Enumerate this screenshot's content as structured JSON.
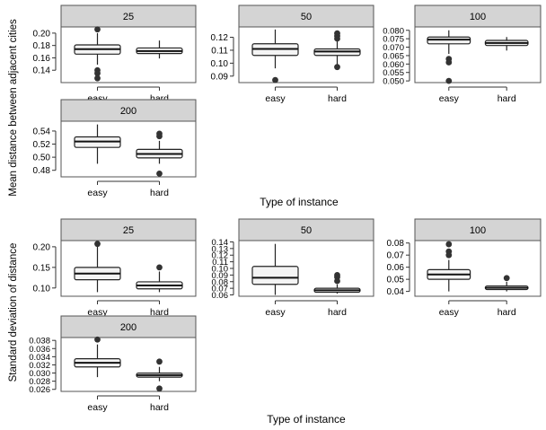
{
  "figure": {
    "top": {
      "ylabel": "Mean distance between adjacent cities",
      "xlabel": "Type of instance"
    },
    "bottom": {
      "ylabel": "Standard deviation of distance",
      "xlabel": "Type of instance"
    }
  },
  "chart_data": [
    {
      "type": "box",
      "facet": "25",
      "group": "Mean distance between adjacent cities",
      "categories": [
        "easy",
        "hard"
      ],
      "yticks": [
        0.14,
        0.16,
        0.18,
        0.2
      ],
      "ylim": [
        0.12,
        0.21
      ],
      "boxes": [
        {
          "name": "easy",
          "whisker_low": 0.149,
          "q1": 0.166,
          "median": 0.174,
          "q3": 0.181,
          "whisker_high": 0.2,
          "outliers": [
            0.206,
            0.14,
            0.135,
            0.127
          ]
        },
        {
          "name": "hard",
          "whisker_low": 0.159,
          "q1": 0.167,
          "median": 0.171,
          "q3": 0.176,
          "whisker_high": 0.188,
          "outliers": []
        }
      ]
    },
    {
      "type": "box",
      "facet": "50",
      "group": "Mean distance between adjacent cities",
      "categories": [
        "easy",
        "hard"
      ],
      "yticks": [
        0.09,
        0.1,
        0.11,
        0.12
      ],
      "ylim": [
        0.085,
        0.128
      ],
      "boxes": [
        {
          "name": "easy",
          "whisker_low": 0.096,
          "q1": 0.106,
          "median": 0.111,
          "q3": 0.115,
          "whisker_high": 0.126,
          "outliers": [
            0.087
          ]
        },
        {
          "name": "hard",
          "whisker_low": 0.099,
          "q1": 0.106,
          "median": 0.109,
          "q3": 0.111,
          "whisker_high": 0.118,
          "outliers": [
            0.123,
            0.121,
            0.119,
            0.097
          ]
        }
      ]
    },
    {
      "type": "box",
      "facet": "100",
      "group": "Mean distance between adjacent cities",
      "categories": [
        "easy",
        "hard"
      ],
      "yticks": [
        0.05,
        0.055,
        0.06,
        0.065,
        0.07,
        0.075,
        0.08
      ],
      "ylim": [
        0.049,
        0.082
      ],
      "boxes": [
        {
          "name": "easy",
          "whisker_low": 0.066,
          "q1": 0.072,
          "median": 0.0745,
          "q3": 0.076,
          "whisker_high": 0.08,
          "outliers": [
            0.063,
            0.061,
            0.05
          ]
        },
        {
          "name": "hard",
          "whisker_low": 0.068,
          "q1": 0.071,
          "median": 0.0725,
          "q3": 0.074,
          "whisker_high": 0.076,
          "outliers": []
        }
      ]
    },
    {
      "type": "box",
      "facet": "200",
      "group": "Mean distance between adjacent cities",
      "categories": [
        "easy",
        "hard"
      ],
      "yticks": [
        0.48,
        0.5,
        0.52,
        0.54
      ],
      "ylim": [
        0.47,
        0.555
      ],
      "boxes": [
        {
          "name": "easy",
          "whisker_low": 0.49,
          "q1": 0.515,
          "median": 0.524,
          "q3": 0.531,
          "whisker_high": 0.55,
          "outliers": []
        },
        {
          "name": "hard",
          "whisker_low": 0.49,
          "q1": 0.499,
          "median": 0.505,
          "q3": 0.512,
          "whisker_high": 0.525,
          "outliers": [
            0.536,
            0.532,
            0.475
          ]
        }
      ]
    },
    {
      "type": "box",
      "facet": "25",
      "group": "Standard deviation of distance",
      "categories": [
        "easy",
        "hard"
      ],
      "yticks": [
        0.1,
        0.15,
        0.2
      ],
      "ylim": [
        0.08,
        0.215
      ],
      "boxes": [
        {
          "name": "easy",
          "whisker_low": 0.09,
          "q1": 0.12,
          "median": 0.135,
          "q3": 0.15,
          "whisker_high": 0.2,
          "outliers": [
            0.207
          ]
        },
        {
          "name": "hard",
          "whisker_low": 0.09,
          "q1": 0.098,
          "median": 0.106,
          "q3": 0.115,
          "whisker_high": 0.14,
          "outliers": [
            0.15
          ]
        }
      ]
    },
    {
      "type": "box",
      "facet": "50",
      "group": "Standard deviation of distance",
      "categories": [
        "easy",
        "hard"
      ],
      "yticks": [
        0.06,
        0.07,
        0.08,
        0.09,
        0.1,
        0.11,
        0.12,
        0.13,
        0.14
      ],
      "ylim": [
        0.058,
        0.142
      ],
      "boxes": [
        {
          "name": "easy",
          "whisker_low": 0.06,
          "q1": 0.076,
          "median": 0.086,
          "q3": 0.103,
          "whisker_high": 0.137,
          "outliers": []
        },
        {
          "name": "hard",
          "whisker_low": 0.062,
          "q1": 0.064,
          "median": 0.067,
          "q3": 0.07,
          "whisker_high": 0.076,
          "outliers": [
            0.09,
            0.087,
            0.081
          ]
        }
      ]
    },
    {
      "type": "box",
      "facet": "100",
      "group": "Standard deviation of distance",
      "categories": [
        "easy",
        "hard"
      ],
      "yticks": [
        0.04,
        0.05,
        0.06,
        0.07,
        0.08
      ],
      "ylim": [
        0.036,
        0.082
      ],
      "boxes": [
        {
          "name": "easy",
          "whisker_low": 0.04,
          "q1": 0.05,
          "median": 0.054,
          "q3": 0.058,
          "whisker_high": 0.066,
          "outliers": [
            0.079,
            0.073,
            0.07
          ]
        },
        {
          "name": "hard",
          "whisker_low": 0.04,
          "q1": 0.0415,
          "median": 0.043,
          "q3": 0.0445,
          "whisker_high": 0.048,
          "outliers": [
            0.051
          ]
        }
      ]
    },
    {
      "type": "box",
      "facet": "200",
      "group": "Standard deviation of distance",
      "categories": [
        "easy",
        "hard"
      ],
      "yticks": [
        0.026,
        0.028,
        0.03,
        0.032,
        0.034,
        0.036,
        0.038
      ],
      "ylim": [
        0.0255,
        0.0387
      ],
      "boxes": [
        {
          "name": "easy",
          "whisker_low": 0.029,
          "q1": 0.0315,
          "median": 0.0325,
          "q3": 0.0335,
          "whisker_high": 0.037,
          "outliers": [
            0.0382
          ]
        },
        {
          "name": "hard",
          "whisker_low": 0.028,
          "q1": 0.029,
          "median": 0.0295,
          "q3": 0.03,
          "whisker_high": 0.0315,
          "outliers": [
            0.0328,
            0.0262
          ]
        }
      ]
    }
  ]
}
